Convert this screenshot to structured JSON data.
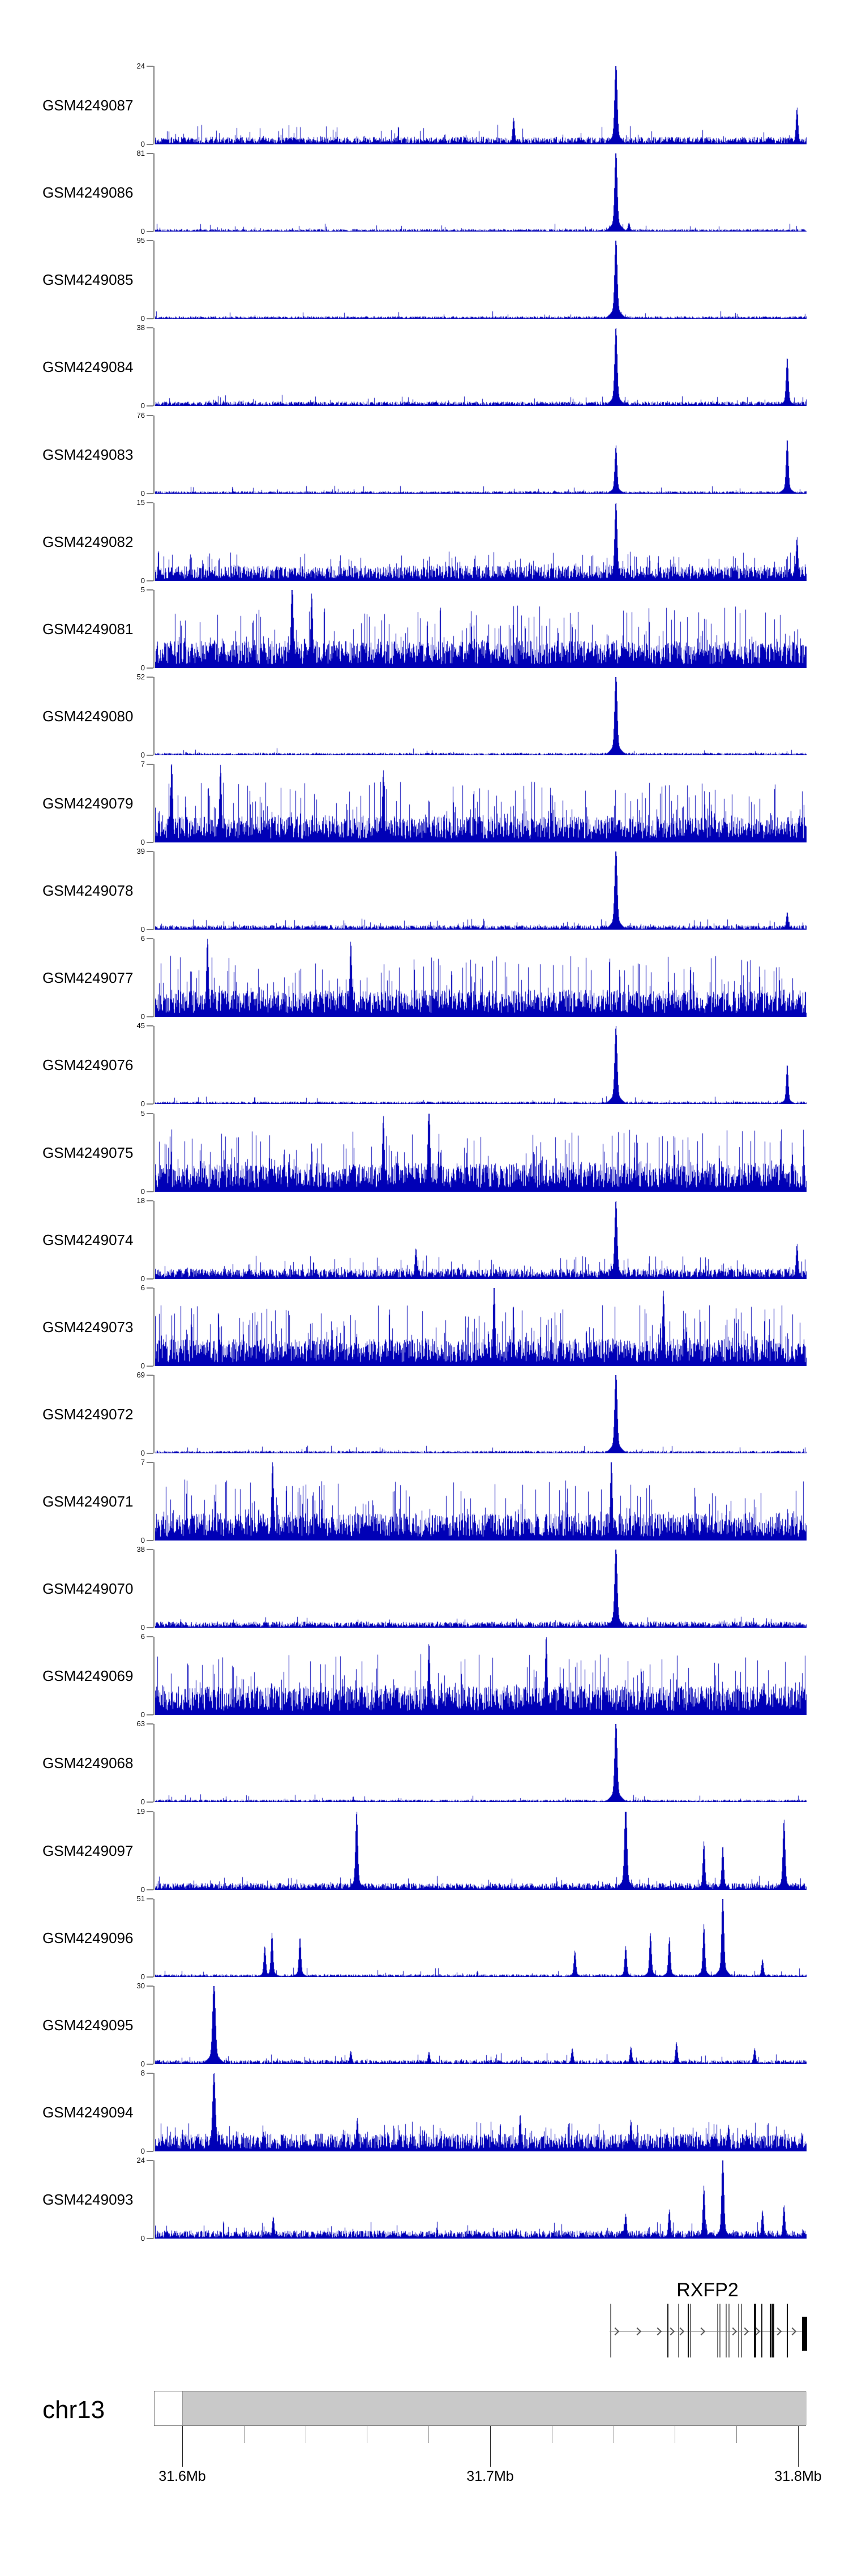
{
  "chart_data": {
    "type": "area",
    "title": "",
    "description": "Genome browser coverage tracks (histogram style) for 25 GEO samples over chr13 31.6-31.8 Mb around the RXFP2 gene",
    "bar_color": "#0000B6",
    "axis_color": "#808080",
    "axis": {
      "chromosome": "chr13",
      "tick_labels": [
        "31.6Mb",
        "31.7Mb",
        "31.8Mb"
      ],
      "ticks_mb": [
        31.6,
        31.7,
        31.8
      ],
      "minor_step_mb": 0.02,
      "region_start_mb": 31.591,
      "region_end_mb": 31.803,
      "ideogram_fill": "#c9c9c9"
    },
    "gene": {
      "name": "RXFP2",
      "strand": "right",
      "label_center_f": 0.848,
      "line_start_f": 0.6977,
      "line_end_f": 1.0,
      "arrows_f": [
        0.708,
        0.742,
        0.773,
        0.793,
        0.808,
        0.84,
        0.889,
        0.907,
        0.924,
        0.957,
        0.98
      ],
      "exons": [
        {
          "f": 0.6985,
          "color": "#777",
          "w": 2
        },
        {
          "f": 0.7863,
          "color": "#111",
          "w": 2
        },
        {
          "f": 0.8028,
          "color": "#777",
          "w": 2
        },
        {
          "f": 0.8176,
          "color": "#111",
          "w": 2
        },
        {
          "f": 0.821,
          "color": "#777",
          "w": 2
        },
        {
          "f": 0.8627,
          "color": "#777",
          "w": 2
        },
        {
          "f": 0.8662,
          "color": "#777",
          "w": 2
        },
        {
          "f": 0.8758,
          "color": "#777",
          "w": 2
        },
        {
          "f": 0.8801,
          "color": "#777",
          "w": 2
        },
        {
          "f": 0.8949,
          "color": "#777",
          "w": 2
        },
        {
          "f": 0.8992,
          "color": "#777",
          "w": 2
        },
        {
          "f": 0.9192,
          "color": "#111",
          "w": 4
        },
        {
          "f": 0.9305,
          "color": "#111",
          "w": 2
        },
        {
          "f": 0.9435,
          "color": "#111",
          "w": 2
        },
        {
          "f": 0.9461,
          "color": "#111",
          "w": 3
        },
        {
          "f": 0.9487,
          "color": "#111",
          "w": 2
        },
        {
          "f": 0.9696,
          "color": "#111",
          "w": 2
        }
      ],
      "end_box_f": 0.9931
    },
    "tracks": [
      {
        "label": "GSM4249087",
        "ymax": 24,
        "ymin": 0,
        "base": 0.055,
        "spike_p": 0.14,
        "spike_h": 0.25,
        "peaks": [
          [
            0.707,
            0.97,
            2.2
          ],
          [
            0.55,
            0.3
          ],
          [
            0.985,
            0.42
          ]
        ]
      },
      {
        "label": "GSM4249086",
        "ymax": 81,
        "ymin": 0,
        "base": 0.018,
        "spike_p": 0.06,
        "spike_h": 0.1,
        "peaks": [
          [
            0.707,
            0.96,
            2.2
          ],
          [
            0.727,
            0.1
          ]
        ]
      },
      {
        "label": "GSM4249085",
        "ymax": 95,
        "ymin": 0,
        "base": 0.018,
        "spike_p": 0.06,
        "spike_h": 0.1,
        "peaks": [
          [
            0.707,
            0.96,
            2.2
          ]
        ]
      },
      {
        "label": "GSM4249084",
        "ymax": 38,
        "ymin": 0,
        "base": 0.032,
        "spike_p": 0.1,
        "spike_h": 0.14,
        "peaks": [
          [
            0.707,
            0.92,
            2.2
          ],
          [
            0.97,
            0.55,
            2.0
          ]
        ]
      },
      {
        "label": "GSM4249083",
        "ymax": 76,
        "ymin": 0,
        "base": 0.018,
        "spike_p": 0.06,
        "spike_h": 0.1,
        "peaks": [
          [
            0.707,
            0.55,
            2.0
          ],
          [
            0.97,
            0.62,
            2.0
          ]
        ]
      },
      {
        "label": "GSM4249082",
        "ymax": 15,
        "ymin": 0,
        "base": 0.11,
        "spike_p": 0.3,
        "spike_h": 0.38,
        "peaks": [
          [
            0.707,
            0.92,
            2.2
          ],
          [
            0.985,
            0.5
          ]
        ]
      },
      {
        "label": "GSM4249081",
        "ymax": 5,
        "ymin": 0,
        "base": 0.2,
        "spike_p": 0.4,
        "spike_h": 0.8,
        "peaks": [
          [
            0.21,
            1.0,
            2.0
          ],
          [
            0.24,
            0.85
          ]
        ]
      },
      {
        "label": "GSM4249080",
        "ymax": 52,
        "ymin": 0,
        "base": 0.018,
        "spike_p": 0.06,
        "spike_h": 0.1,
        "peaks": [
          [
            0.707,
            0.96,
            2.2
          ]
        ]
      },
      {
        "label": "GSM4249079",
        "ymax": 7,
        "ymin": 0,
        "base": 0.19,
        "spike_p": 0.4,
        "spike_h": 0.78,
        "peaks": [
          [
            0.025,
            0.95
          ],
          [
            0.1,
            0.88
          ],
          [
            0.35,
            0.82
          ]
        ]
      },
      {
        "label": "GSM4249078",
        "ymax": 39,
        "ymin": 0,
        "base": 0.032,
        "spike_p": 0.1,
        "spike_h": 0.14,
        "peaks": [
          [
            0.707,
            0.96,
            2.2
          ],
          [
            0.97,
            0.2
          ]
        ]
      },
      {
        "label": "GSM4249077",
        "ymax": 6,
        "ymin": 0,
        "base": 0.2,
        "spike_p": 0.4,
        "spike_h": 0.78,
        "peaks": [
          [
            0.08,
            0.92
          ],
          [
            0.3,
            0.86
          ]
        ]
      },
      {
        "label": "GSM4249076",
        "ymax": 45,
        "ymin": 0,
        "base": 0.018,
        "spike_p": 0.06,
        "spike_h": 0.1,
        "peaks": [
          [
            0.707,
            0.9,
            2.2
          ],
          [
            0.97,
            0.45
          ]
        ]
      },
      {
        "label": "GSM4249075",
        "ymax": 5,
        "ymin": 0,
        "base": 0.21,
        "spike_p": 0.42,
        "spike_h": 0.8,
        "peaks": [
          [
            0.42,
            1.0,
            2.0
          ],
          [
            0.35,
            0.86
          ]
        ]
      },
      {
        "label": "GSM4249074",
        "ymax": 18,
        "ymin": 0,
        "base": 0.075,
        "spike_p": 0.2,
        "spike_h": 0.3,
        "peaks": [
          [
            0.707,
            0.92,
            2.2
          ],
          [
            0.985,
            0.4
          ],
          [
            0.4,
            0.35
          ]
        ]
      },
      {
        "label": "GSM4249073",
        "ymax": 6,
        "ymin": 0,
        "base": 0.2,
        "spike_p": 0.4,
        "spike_h": 0.78,
        "peaks": [
          [
            0.52,
            0.95
          ],
          [
            0.78,
            0.86
          ]
        ]
      },
      {
        "label": "GSM4249072",
        "ymax": 69,
        "ymin": 0,
        "base": 0.018,
        "spike_p": 0.06,
        "spike_h": 0.1,
        "peaks": [
          [
            0.707,
            0.96,
            2.2
          ]
        ]
      },
      {
        "label": "GSM4249071",
        "ymax": 7,
        "ymin": 0,
        "base": 0.2,
        "spike_p": 0.4,
        "spike_h": 0.78,
        "peaks": [
          [
            0.18,
            0.92
          ],
          [
            0.7,
            0.96
          ]
        ]
      },
      {
        "label": "GSM4249070",
        "ymax": 38,
        "ymin": 0,
        "base": 0.045,
        "spike_p": 0.1,
        "spike_h": 0.14,
        "peaks": [
          [
            0.707,
            0.96,
            2.2
          ]
        ]
      },
      {
        "label": "GSM4249069",
        "ymax": 6,
        "ymin": 0,
        "base": 0.21,
        "spike_p": 0.4,
        "spike_h": 0.78,
        "peaks": [
          [
            0.6,
            0.9
          ],
          [
            0.42,
            0.82
          ]
        ]
      },
      {
        "label": "GSM4249068",
        "ymax": 63,
        "ymin": 0,
        "base": 0.018,
        "spike_p": 0.06,
        "spike_h": 0.1,
        "peaks": [
          [
            0.707,
            0.96,
            2.2
          ]
        ]
      },
      {
        "label": "GSM4249097",
        "ymax": 19,
        "ymin": 0,
        "base": 0.05,
        "spike_p": 0.15,
        "spike_h": 0.18,
        "peaks": [
          [
            0.309,
            0.9,
            2.0
          ],
          [
            0.722,
            1.0,
            2.2
          ],
          [
            0.842,
            0.55
          ],
          [
            0.871,
            0.5
          ],
          [
            0.965,
            0.8,
            2.0
          ]
        ]
      },
      {
        "label": "GSM4249096",
        "ymax": 51,
        "ymin": 0,
        "base": 0.02,
        "spike_p": 0.08,
        "spike_h": 0.12,
        "peaks": [
          [
            0.168,
            0.35
          ],
          [
            0.179,
            0.5
          ],
          [
            0.222,
            0.45
          ],
          [
            0.644,
            0.3
          ],
          [
            0.722,
            0.35
          ],
          [
            0.76,
            0.5
          ],
          [
            0.789,
            0.45
          ],
          [
            0.842,
            0.6
          ],
          [
            0.871,
            0.95,
            2.0
          ],
          [
            0.932,
            0.2
          ]
        ]
      },
      {
        "label": "GSM4249095",
        "ymax": 30,
        "ymin": 0,
        "base": 0.03,
        "spike_p": 0.12,
        "spike_h": 0.15,
        "peaks": [
          [
            0.09,
            0.95,
            2.5
          ],
          [
            0.3,
            0.15
          ],
          [
            0.42,
            0.14
          ],
          [
            0.64,
            0.18
          ],
          [
            0.73,
            0.2
          ],
          [
            0.8,
            0.25
          ],
          [
            0.92,
            0.18
          ]
        ]
      },
      {
        "label": "GSM4249094",
        "ymax": 8,
        "ymin": 0,
        "base": 0.13,
        "spike_p": 0.32,
        "spike_h": 0.38,
        "peaks": [
          [
            0.09,
            0.9,
            2.5
          ],
          [
            0.31,
            0.38
          ],
          [
            0.56,
            0.42
          ],
          [
            0.73,
            0.36
          ],
          [
            0.88,
            0.3
          ]
        ]
      },
      {
        "label": "GSM4249093",
        "ymax": 24,
        "ymin": 0,
        "base": 0.06,
        "spike_p": 0.14,
        "spike_h": 0.22,
        "peaks": [
          [
            0.181,
            0.25
          ],
          [
            0.722,
            0.28
          ],
          [
            0.789,
            0.33
          ],
          [
            0.842,
            0.6
          ],
          [
            0.871,
            0.95,
            2.0
          ],
          [
            0.932,
            0.32
          ],
          [
            0.965,
            0.38
          ]
        ]
      }
    ]
  }
}
